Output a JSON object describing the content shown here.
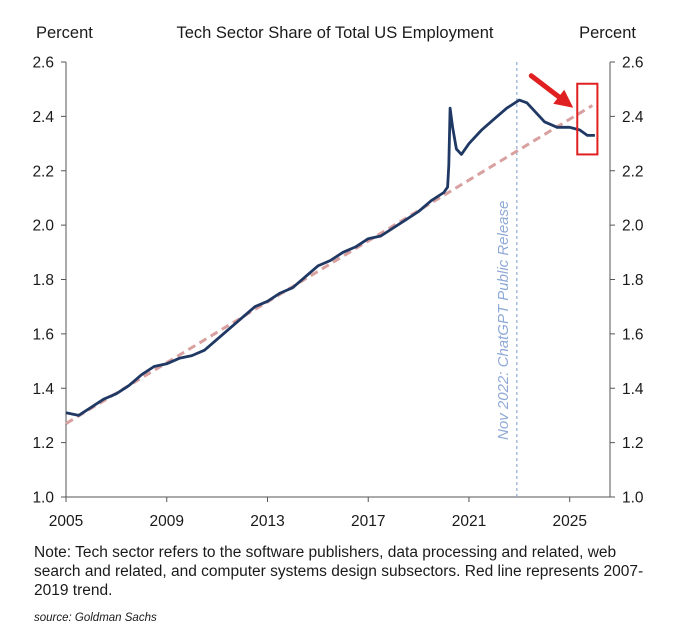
{
  "chart_data": {
    "type": "line",
    "title": "Tech Sector Share of Total US Employment",
    "ylabel_left": "Percent",
    "ylabel_right": "Percent",
    "xlim": [
      2005,
      2026.6
    ],
    "ylim": [
      1.0,
      2.6
    ],
    "x_ticks": [
      2005,
      2009,
      2013,
      2017,
      2021,
      2025
    ],
    "y_ticks": [
      1.0,
      1.2,
      1.4,
      1.6,
      1.8,
      2.0,
      2.2,
      2.4,
      2.6
    ],
    "y_tick_labels": [
      "1.0",
      "1.2",
      "1.4",
      "1.6",
      "1.8",
      "2.0",
      "2.2",
      "2.4",
      "2.6"
    ],
    "grid": false,
    "series": [
      {
        "style": "solid",
        "color": "#1f3864",
        "x": [
          2005.0,
          2005.5,
          2006.0,
          2006.5,
          2007.0,
          2007.5,
          2008.0,
          2008.5,
          2009.0,
          2009.5,
          2010.0,
          2010.5,
          2011.0,
          2011.5,
          2012.0,
          2012.5,
          2013.0,
          2013.5,
          2014.0,
          2014.5,
          2015.0,
          2015.5,
          2016.0,
          2016.5,
          2017.0,
          2017.5,
          2018.0,
          2018.5,
          2019.0,
          2019.5,
          2020.0,
          2020.15,
          2020.2,
          2020.25,
          2020.35,
          2020.5,
          2020.7,
          2021.0,
          2021.5,
          2022.0,
          2022.5,
          2023.0,
          2023.3,
          2023.7,
          2024.0,
          2024.5,
          2025.0,
          2025.4,
          2025.7,
          2026.0
        ],
        "y": [
          1.31,
          1.3,
          1.33,
          1.36,
          1.38,
          1.41,
          1.45,
          1.48,
          1.49,
          1.51,
          1.52,
          1.54,
          1.58,
          1.62,
          1.66,
          1.7,
          1.72,
          1.75,
          1.77,
          1.81,
          1.85,
          1.87,
          1.9,
          1.92,
          1.95,
          1.96,
          1.99,
          2.02,
          2.05,
          2.09,
          2.12,
          2.14,
          2.22,
          2.43,
          2.36,
          2.28,
          2.26,
          2.3,
          2.35,
          2.39,
          2.43,
          2.46,
          2.45,
          2.41,
          2.38,
          2.36,
          2.36,
          2.35,
          2.33,
          2.33
        ]
      },
      {
        "style": "dashed",
        "color": "#d9a0a0",
        "x": [
          2005.0,
          2025.9
        ],
        "y": [
          1.27,
          2.44
        ]
      }
    ],
    "annotations": {
      "event_x": 2022.9,
      "event_label": "Nov 2022: ChatGPT Public Release",
      "highlight_box": {
        "x": [
          2025.3,
          2026.1
        ],
        "y": [
          2.26,
          2.52
        ]
      },
      "arrow_color": "#e02020",
      "event_line_color": "#8fa9d6"
    }
  },
  "note": "Note: Tech sector refers to the software publishers, data processing and related, web search and related, and computer systems design subsectors. Red line represents 2007-2019 trend.",
  "source": "source: Goldman Sachs"
}
